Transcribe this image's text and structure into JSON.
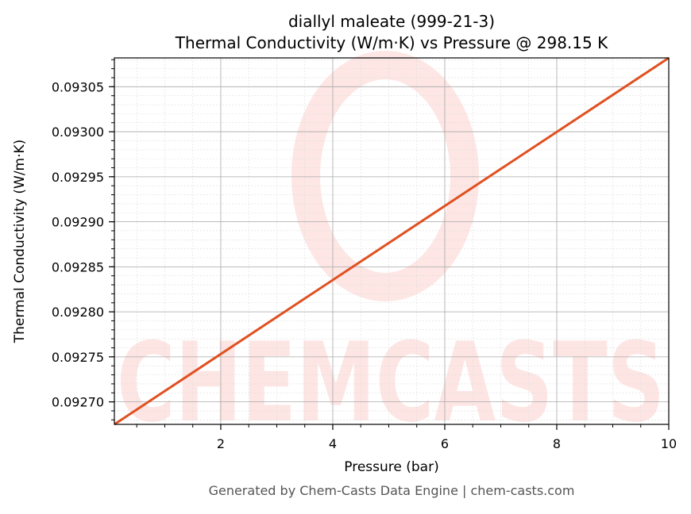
{
  "chart_data": {
    "type": "line",
    "title": "diallyl maleate (999-21-3)",
    "subtitle": "Thermal Conductivity (W/m·K) vs Pressure @ 298.15 K",
    "xlabel": "Pressure (bar)",
    "ylabel": "Thermal Conductivity (W/m·K)",
    "xlim": [
      0.1,
      10
    ],
    "ylim": [
      0.092675,
      0.093082
    ],
    "xticks": [
      2,
      4,
      6,
      8,
      10
    ],
    "xtick_labels": [
      "2",
      "4",
      "6",
      "8",
      "10"
    ],
    "yticks": [
      0.0927,
      0.09275,
      0.0928,
      0.09285,
      0.0929,
      0.09295,
      0.093,
      0.09305
    ],
    "ytick_labels": [
      "0.09270",
      "0.09275",
      "0.09280",
      "0.09285",
      "0.09290",
      "0.09295",
      "0.09300",
      "0.09305"
    ],
    "grid": true,
    "series": [
      {
        "x": [
          0.1,
          10
        ],
        "y": [
          0.092675,
          0.093082
        ],
        "color": "#e05020"
      }
    ],
    "footer": "Generated by Chem-Casts Data Engine | chem-casts.com",
    "watermark": "CHEMCASTS"
  }
}
